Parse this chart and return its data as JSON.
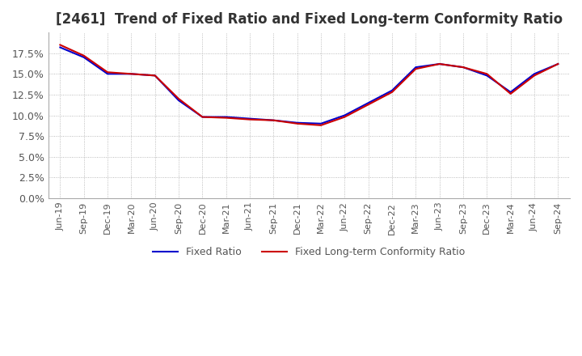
{
  "title": "[2461]  Trend of Fixed Ratio and Fixed Long-term Conformity Ratio",
  "title_fontsize": 12,
  "ylim": [
    0.0,
    0.2
  ],
  "yticks": [
    0.0,
    0.025,
    0.05,
    0.075,
    0.1,
    0.125,
    0.15,
    0.175
  ],
  "ytick_labels": [
    "0.0%",
    "2.5%",
    "5.0%",
    "7.5%",
    "10.0%",
    "12.5%",
    "15.0%",
    "17.5%"
  ],
  "dates": [
    "Jun-19",
    "Sep-19",
    "Dec-19",
    "Mar-20",
    "Jun-20",
    "Sep-20",
    "Dec-20",
    "Mar-21",
    "Jun-21",
    "Sep-21",
    "Dec-21",
    "Mar-22",
    "Jun-22",
    "Sep-22",
    "Dec-22",
    "Mar-23",
    "Jun-23",
    "Sep-23",
    "Dec-23",
    "Mar-24",
    "Jun-24",
    "Sep-24"
  ],
  "fixed_ratio": [
    0.182,
    0.17,
    0.15,
    0.15,
    0.148,
    0.118,
    0.098,
    0.098,
    0.096,
    0.094,
    0.091,
    0.09,
    0.1,
    0.115,
    0.13,
    0.158,
    0.162,
    0.158,
    0.148,
    0.128,
    0.15,
    0.162
  ],
  "fixed_lt_ratio": [
    0.185,
    0.172,
    0.152,
    0.15,
    0.148,
    0.12,
    0.098,
    0.097,
    0.095,
    0.094,
    0.09,
    0.088,
    0.098,
    0.113,
    0.128,
    0.156,
    0.162,
    0.158,
    0.15,
    0.126,
    0.148,
    0.162
  ],
  "fixed_ratio_color": "#0000cc",
  "fixed_lt_ratio_color": "#cc0000",
  "background_color": "#ffffff",
  "plot_bg_color": "#ffffff",
  "grid_color": "#aaaaaa",
  "legend_labels": [
    "Fixed Ratio",
    "Fixed Long-term Conformity Ratio"
  ]
}
